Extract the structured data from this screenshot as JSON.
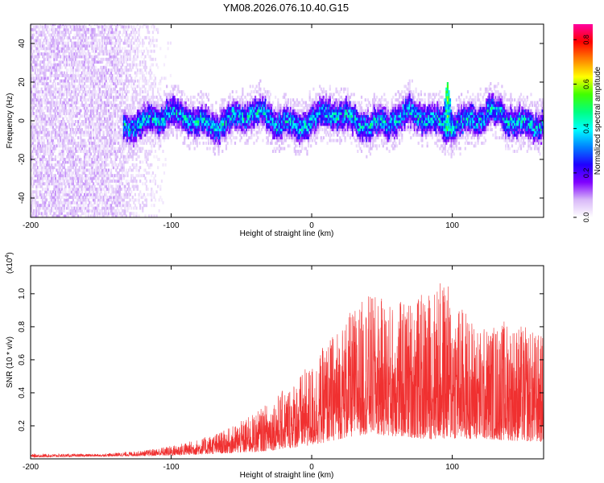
{
  "title": "YM08.2026.076.10.40.G15",
  "chart_data": [
    {
      "type": "heatmap",
      "title": "YM08.2026.076.10.40.G15",
      "xlabel": "Height of straight line (km)",
      "ylabel": "Frequency (Hz)",
      "xlim": [
        -200,
        165
      ],
      "ylim": [
        -50,
        50
      ],
      "xticks": [
        "-200",
        "-100",
        "0",
        "100"
      ],
      "xtick_values": [
        -200,
        -100,
        0,
        100
      ],
      "yticks": [
        "-40",
        "-20",
        "0",
        "20",
        "40"
      ],
      "ytick_values": [
        -40,
        -20,
        0,
        20,
        40
      ],
      "colorbar": {
        "label": "Normalized spectral amplitude",
        "range": [
          0,
          0.87
        ],
        "ticks": [
          "0.0",
          "0.2",
          "0.4",
          "0.6",
          "0.8"
        ],
        "tick_values": [
          0,
          0.2,
          0.4,
          0.6,
          0.8
        ],
        "colors": [
          "#ffffff",
          "#d8b8f8",
          "#8000ff",
          "#2000ff",
          "#0080ff",
          "#00ffff",
          "#00ff80",
          "#40ff00",
          "#ffff00",
          "#ff8000",
          "#ff0000",
          "#ff00a0"
        ]
      },
      "features": [
        {
          "name": "noise region",
          "x_range": [
            -200,
            -100
          ],
          "amplitude": 0.05
        },
        {
          "name": "signal band",
          "x_range": [
            -135,
            165
          ],
          "center_hz": 0,
          "width_hz": 8,
          "amplitude": 0.35
        },
        {
          "name": "spike",
          "x": 96,
          "peak_hz": 20,
          "amplitude": 0.6
        }
      ]
    },
    {
      "type": "line",
      "xlabel": "Height of straight line (km)",
      "ylabel": "SNR (10 * v/v)",
      "y_multiplier": "(x10",
      "y_multiplier_exp": "4",
      "y_multiplier_close": ")",
      "xlim": [
        -200,
        165
      ],
      "ylim": [
        0,
        1.17
      ],
      "xticks": [
        "-200",
        "-100",
        "0",
        "100"
      ],
      "xtick_values": [
        -200,
        -100,
        0,
        100
      ],
      "yticks": [
        "0.2",
        "0.4",
        "0.6",
        "0.8",
        "1.0"
      ],
      "ytick_values": [
        0.2,
        0.4,
        0.6,
        0.8,
        1.0
      ],
      "series": [
        {
          "name": "SNR",
          "color": "#f03030",
          "envelope": {
            "x": [
              -200,
              -150,
              -120,
              -100,
              -80,
              -60,
              -40,
              -20,
              0,
              20,
              40,
              60,
              80,
              95,
              100,
              120,
              140,
              165
            ],
            "y": [
              0.03,
              0.03,
              0.05,
              0.08,
              0.12,
              0.18,
              0.28,
              0.42,
              0.58,
              0.82,
              1.0,
              0.95,
              1.0,
              1.1,
              1.0,
              0.8,
              0.85,
              0.75
            ]
          },
          "floor": {
            "x": [
              -200,
              -100,
              -40,
              0,
              20,
              40,
              80,
              120,
              165
            ],
            "y": [
              0.01,
              0.02,
              0.04,
              0.08,
              0.12,
              0.15,
              0.12,
              0.12,
              0.1
            ]
          }
        }
      ]
    }
  ]
}
